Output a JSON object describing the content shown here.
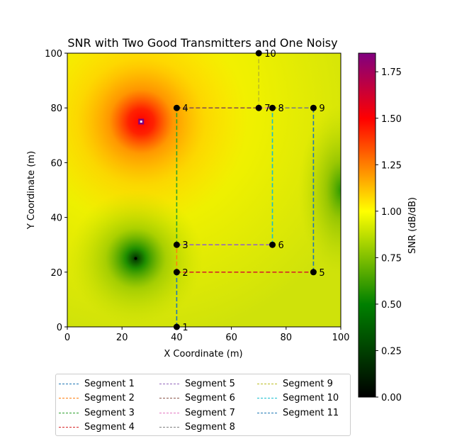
{
  "chart_data": {
    "type": "heatmap",
    "title": "SNR with Two Good Transmitters and One Noisy",
    "xlabel": "X Coordinate (m)",
    "ylabel": "Y Coordinate (m)",
    "xlim": [
      0,
      100
    ],
    "ylim": [
      0,
      100
    ],
    "x_ticks": [
      "0",
      "20",
      "40",
      "60",
      "80",
      "100"
    ],
    "y_ticks": [
      "0",
      "20",
      "40",
      "60",
      "80",
      "100"
    ],
    "colorbar": {
      "label": "SNR (dB/dB)",
      "range": [
        0,
        1.85
      ],
      "ticks": [
        "0.00",
        "0.25",
        "0.50",
        "0.75",
        "1.00",
        "1.25",
        "1.50",
        "1.75"
      ],
      "colors": [
        "#000000",
        "#008000",
        "#ffff00",
        "#ff0000",
        "#800080"
      ]
    },
    "heat_features": [
      {
        "type": "peak",
        "x": 27,
        "y": 75,
        "value": 1.85
      },
      {
        "type": "dip",
        "x": 25,
        "y": 25,
        "value": 0.0
      },
      {
        "type": "dip",
        "x": 100,
        "y": 50,
        "value": 0.55
      }
    ],
    "waypoints": [
      {
        "label": "1",
        "x": 40,
        "y": 0
      },
      {
        "label": "2",
        "x": 40,
        "y": 20
      },
      {
        "label": "3",
        "x": 40,
        "y": 30
      },
      {
        "label": "4",
        "x": 40,
        "y": 80
      },
      {
        "label": "5",
        "x": 90,
        "y": 20
      },
      {
        "label": "6",
        "x": 75,
        "y": 30
      },
      {
        "label": "7",
        "x": 70,
        "y": 80
      },
      {
        "label": "8",
        "x": 75,
        "y": 80
      },
      {
        "label": "9",
        "x": 90,
        "y": 80
      },
      {
        "label": "10",
        "x": 70,
        "y": 100
      }
    ],
    "segments": [
      {
        "name": "Segment 1",
        "color": "#1f77b4",
        "from": [
          40,
          0
        ],
        "to": [
          40,
          20
        ]
      },
      {
        "name": "Segment 2",
        "color": "#ff7f0e",
        "from": [
          40,
          20
        ],
        "to": [
          40,
          30
        ]
      },
      {
        "name": "Segment 3",
        "color": "#2ca02c",
        "from": [
          40,
          30
        ],
        "to": [
          40,
          80
        ]
      },
      {
        "name": "Segment 4",
        "color": "#d62728",
        "from": [
          40,
          20
        ],
        "to": [
          90,
          20
        ]
      },
      {
        "name": "Segment 5",
        "color": "#9467bd",
        "from": [
          40,
          30
        ],
        "to": [
          75,
          30
        ]
      },
      {
        "name": "Segment 6",
        "color": "#8c564b",
        "from": [
          40,
          80
        ],
        "to": [
          70,
          80
        ]
      },
      {
        "name": "Segment 7",
        "color": "#e377c2",
        "from": [
          70,
          80
        ],
        "to": [
          75,
          80
        ]
      },
      {
        "name": "Segment 8",
        "color": "#7f7f7f",
        "from": [
          75,
          80
        ],
        "to": [
          90,
          80
        ]
      },
      {
        "name": "Segment 9",
        "color": "#bcbd22",
        "from": [
          70,
          80
        ],
        "to": [
          70,
          100
        ]
      },
      {
        "name": "Segment 10",
        "color": "#17becf",
        "from": [
          75,
          30
        ],
        "to": [
          75,
          80
        ]
      },
      {
        "name": "Segment 11",
        "color": "#1f77b4",
        "from": [
          90,
          20
        ],
        "to": [
          90,
          80
        ]
      }
    ],
    "legend_placement": "bottom-center",
    "grid": false
  }
}
